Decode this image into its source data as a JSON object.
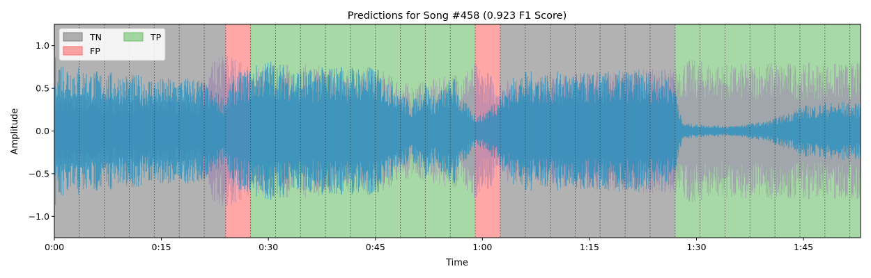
{
  "chart_data": {
    "type": "area",
    "title": "Predictions for Song #458 (0.923 F1 Score)",
    "xlabel": "Time",
    "ylabel": "Amplitude",
    "xlim_seconds": [
      0,
      113
    ],
    "ylim": [
      -1.25,
      1.25
    ],
    "x_ticks": [
      {
        "value": 0,
        "label": "0:00"
      },
      {
        "value": 15,
        "label": "0:15"
      },
      {
        "value": 30,
        "label": "0:30"
      },
      {
        "value": 45,
        "label": "0:45"
      },
      {
        "value": 60,
        "label": "1:00"
      },
      {
        "value": 75,
        "label": "1:15"
      },
      {
        "value": 90,
        "label": "1:30"
      },
      {
        "value": 105,
        "label": "1:45"
      }
    ],
    "y_ticks": [
      {
        "value": 1.0,
        "label": "1.0"
      },
      {
        "value": 0.5,
        "label": "0.5"
      },
      {
        "value": 0.0,
        "label": "0.0"
      },
      {
        "value": -0.5,
        "label": "−0.5"
      },
      {
        "value": -1.0,
        "label": "−1.0"
      }
    ],
    "legend": {
      "placement": "upper-left",
      "entries": [
        {
          "label": "TN",
          "color": "#7f7f7f"
        },
        {
          "label": "FP",
          "color": "#ff6b6b"
        },
        {
          "label": "TP",
          "color": "#6abf69"
        }
      ]
    },
    "beat_lines_seconds": [
      3.5,
      7,
      10.5,
      14,
      17.5,
      21,
      24,
      27.5,
      31,
      34.5,
      38,
      41.5,
      45,
      48.5,
      52,
      55.5,
      59,
      62.5,
      66,
      69.5,
      73,
      76.5,
      80,
      83.5,
      87,
      90.5,
      94,
      97.5,
      101,
      104.5,
      108,
      111.5
    ],
    "regions": [
      {
        "label": "TN",
        "start": 0,
        "end": 24,
        "color": "#7f7f7f"
      },
      {
        "label": "FP",
        "start": 24,
        "end": 27.5,
        "color": "#ff6b6b"
      },
      {
        "label": "TP",
        "start": 27.5,
        "end": 59,
        "color": "#6abf69"
      },
      {
        "label": "FP",
        "start": 59,
        "end": 62.5,
        "color": "#ff6b6b"
      },
      {
        "label": "TN",
        "start": 62.5,
        "end": 87,
        "color": "#7f7f7f"
      },
      {
        "label": "TP",
        "start": 87,
        "end": 113,
        "color": "#6abf69"
      }
    ],
    "series": [
      {
        "color": "#1f8fc0",
        "envelope_times": [
          0,
          5,
          10,
          15,
          20,
          22,
          24,
          25,
          27.5,
          30,
          35,
          40,
          45,
          48,
          50,
          52,
          53,
          56,
          57,
          59,
          60,
          62.5,
          65,
          70,
          75,
          80,
          85,
          87,
          88,
          90,
          95,
          100,
          105,
          110,
          113
        ],
        "envelope_amplitudes": [
          0.88,
          0.72,
          0.68,
          0.62,
          0.65,
          0.5,
          0.4,
          0.65,
          0.75,
          0.85,
          0.72,
          0.78,
          0.75,
          0.55,
          0.32,
          0.6,
          0.4,
          0.65,
          0.4,
          0.2,
          0.2,
          0.45,
          0.7,
          0.7,
          0.68,
          0.72,
          0.72,
          0.62,
          0.1,
          0.08,
          0.06,
          0.12,
          0.3,
          0.35,
          0.32
        ]
      },
      {
        "color": "#9b7bb0",
        "envelope_times": [
          0,
          20,
          22,
          24,
          25,
          27.5,
          30,
          45,
          50,
          55,
          59,
          62.5,
          75,
          87,
          88,
          95,
          100,
          105,
          110,
          113
        ],
        "envelope_amplitudes": [
          0.4,
          0.4,
          0.8,
          0.95,
          0.9,
          0.75,
          0.8,
          0.75,
          0.55,
          0.65,
          0.8,
          0.6,
          0.7,
          0.75,
          0.85,
          0.78,
          0.82,
          0.8,
          0.8,
          0.8
        ]
      }
    ]
  }
}
